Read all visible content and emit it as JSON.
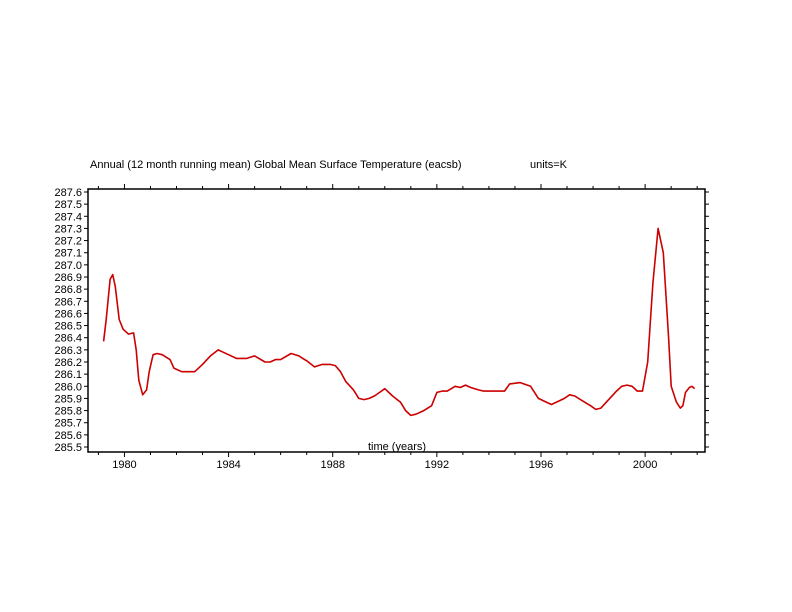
{
  "chart_data": {
    "type": "line",
    "title": "Annual (12 month running mean) Global Mean Surface Temperature (eacsb)",
    "units_label": "units=K",
    "xlabel": "time (years)",
    "ylabel": "",
    "xlim": [
      1978.6,
      2002.3
    ],
    "ylim": [
      285.5,
      287.6
    ],
    "x_ticks": [
      1980,
      1984,
      1988,
      1992,
      1996,
      2000
    ],
    "y_ticks": [
      285.5,
      285.6,
      285.7,
      285.8,
      285.9,
      286.0,
      286.1,
      286.2,
      286.3,
      286.4,
      286.5,
      286.6,
      286.7,
      286.8,
      286.9,
      287.0,
      287.1,
      287.2,
      287.3,
      287.4,
      287.5,
      287.6
    ],
    "y_tick_labels": [
      "285.5",
      "285.6",
      "285.7",
      "285.8",
      "285.9",
      "286.0",
      "286.1",
      "286.2",
      "286.3",
      "286.4",
      "286.5",
      "286.6",
      "286.7",
      "286.8",
      "286.9",
      "287.0",
      "287.1",
      "287.2",
      "287.3",
      "287.4",
      "287.5",
      "287.6"
    ],
    "x_tick_labels": [
      "1980",
      "1984",
      "1988",
      "1992",
      "1996",
      "2000"
    ],
    "grid": false,
    "series": [
      {
        "color": "#cc0000",
        "x": [
          1979.2,
          1979.3,
          1979.45,
          1979.55,
          1979.65,
          1979.8,
          1979.95,
          1980.15,
          1980.35,
          1980.45,
          1980.55,
          1980.7,
          1980.85,
          1980.95,
          1981.1,
          1981.25,
          1981.45,
          1981.75,
          1981.9,
          1982.2,
          1982.4,
          1982.7,
          1983.0,
          1983.3,
          1983.6,
          1983.8,
          1984.0,
          1984.3,
          1984.7,
          1985.0,
          1985.4,
          1985.6,
          1985.8,
          1986.0,
          1986.4,
          1986.7,
          1986.85,
          1987.0,
          1987.3,
          1987.6,
          1987.9,
          1988.1,
          1988.3,
          1988.5,
          1988.8,
          1989.0,
          1989.2,
          1989.4,
          1989.6,
          1989.8,
          1990.0,
          1990.3,
          1990.6,
          1990.8,
          1991.0,
          1991.2,
          1991.5,
          1991.8,
          1992.0,
          1992.2,
          1992.4,
          1992.7,
          1992.9,
          1993.1,
          1993.3,
          1993.6,
          1993.8,
          1994.0,
          1994.3,
          1994.6,
          1994.8,
          1995.2,
          1995.6,
          1995.9,
          1996.1,
          1996.4,
          1996.7,
          1996.9,
          1997.1,
          1997.3,
          1997.6,
          1997.9,
          1998.1,
          1998.3,
          1998.6,
          1998.9,
          1999.1,
          1999.3,
          1999.5,
          1999.7,
          1999.9,
          2000.1,
          2000.3,
          2000.5,
          2000.7,
          2000.9,
          2001.0,
          2001.2,
          2001.35,
          2001.45,
          2001.55,
          2001.7,
          2001.8,
          2001.9
        ],
        "y": [
          286.37,
          286.55,
          286.88,
          286.92,
          286.82,
          286.55,
          286.47,
          286.43,
          286.44,
          286.3,
          286.05,
          285.93,
          285.97,
          286.12,
          286.26,
          286.27,
          286.26,
          286.22,
          286.15,
          286.12,
          286.12,
          286.12,
          286.18,
          286.25,
          286.3,
          286.28,
          286.26,
          286.23,
          286.23,
          286.25,
          286.2,
          286.2,
          286.22,
          286.22,
          286.27,
          286.25,
          286.23,
          286.21,
          286.16,
          286.18,
          286.18,
          286.17,
          286.12,
          286.04,
          285.97,
          285.9,
          285.89,
          285.9,
          285.92,
          285.95,
          285.98,
          285.92,
          285.87,
          285.8,
          285.76,
          285.77,
          285.8,
          285.84,
          285.95,
          285.96,
          285.96,
          286.0,
          285.99,
          286.01,
          285.99,
          285.97,
          285.96,
          285.96,
          285.96,
          285.96,
          286.02,
          286.03,
          286.0,
          285.9,
          285.88,
          285.85,
          285.88,
          285.9,
          285.93,
          285.92,
          285.88,
          285.84,
          285.81,
          285.82,
          285.89,
          285.96,
          286.0,
          286.01,
          286.0,
          285.96,
          285.96,
          286.2,
          286.85,
          287.3,
          287.1,
          286.4,
          286.0,
          285.87,
          285.82,
          285.84,
          285.95,
          285.99,
          286.0,
          285.98
        ]
      }
    ]
  }
}
